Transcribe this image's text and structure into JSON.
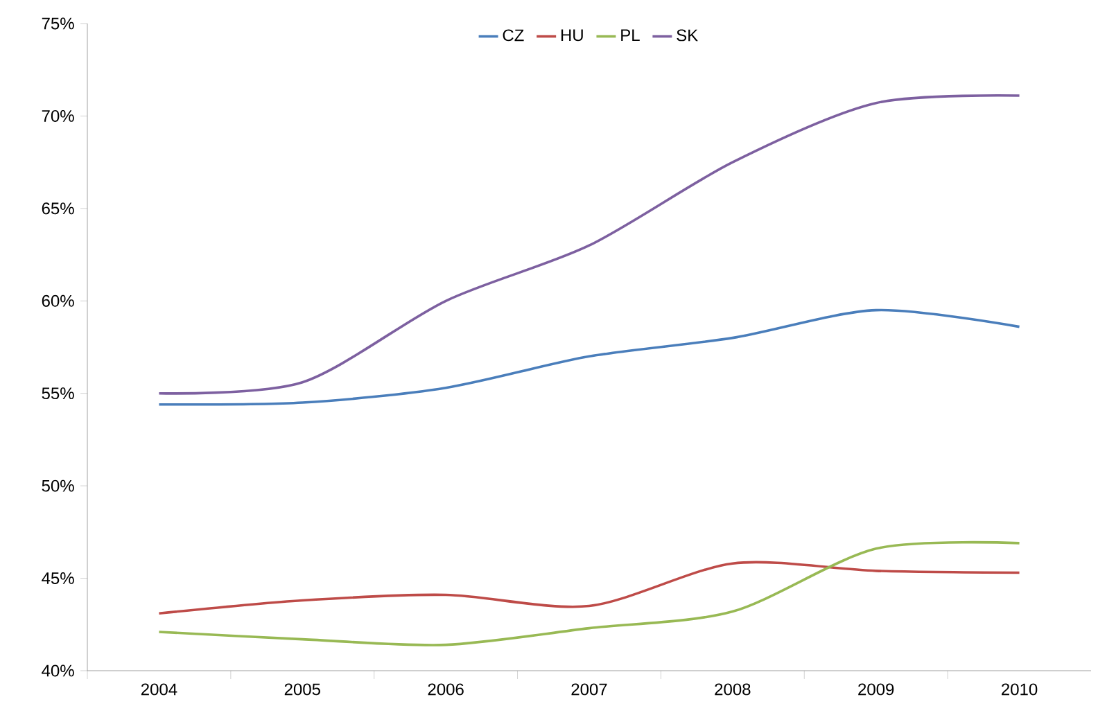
{
  "chart_data": {
    "type": "line",
    "categories": [
      "2004",
      "2005",
      "2006",
      "2007",
      "2008",
      "2009",
      "2010"
    ],
    "series": [
      {
        "name": "CZ",
        "color": "#4a7ebb",
        "values": [
          54.4,
          54.5,
          55.3,
          57.0,
          58.0,
          59.5,
          58.6
        ]
      },
      {
        "name": "HU",
        "color": "#be4b48",
        "values": [
          43.1,
          43.8,
          44.1,
          43.5,
          45.8,
          45.4,
          45.3
        ]
      },
      {
        "name": "PL",
        "color": "#98b954",
        "values": [
          42.1,
          41.7,
          41.4,
          42.3,
          43.2,
          46.6,
          46.9
        ]
      },
      {
        "name": "SK",
        "color": "#7d60a0",
        "values": [
          55.0,
          55.6,
          60.0,
          63.0,
          67.5,
          70.7,
          71.1
        ]
      }
    ],
    "ylim": [
      40,
      75
    ],
    "yticks": [
      {
        "value": 40,
        "label": "40%"
      },
      {
        "value": 45,
        "label": "45%"
      },
      {
        "value": 50,
        "label": "50%"
      },
      {
        "value": 55,
        "label": "55%"
      },
      {
        "value": 60,
        "label": "60%"
      },
      {
        "value": 65,
        "label": "65%"
      },
      {
        "value": 70,
        "label": "70%"
      },
      {
        "value": 75,
        "label": "75%"
      }
    ],
    "grid": false,
    "legend": "top",
    "marker": "none",
    "line_style": "solid"
  }
}
